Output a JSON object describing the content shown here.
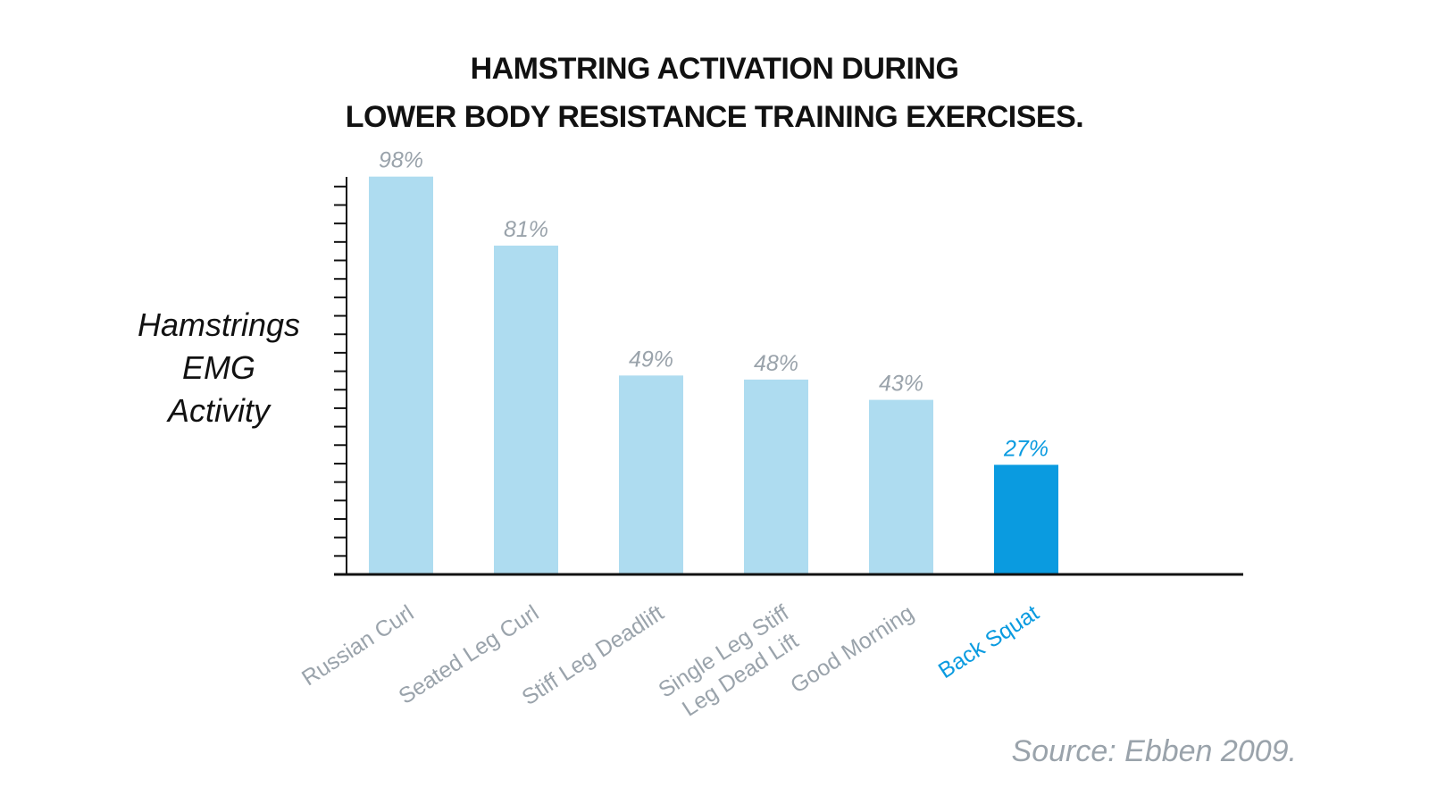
{
  "chart_data": {
    "type": "bar",
    "title": [
      "HAMSTRING ACTIVATION DURING",
      "LOWER BODY RESISTANCE TRAINING EXERCISES."
    ],
    "ylabel": [
      "Hamstrings",
      "EMG",
      "Activity"
    ],
    "xlabel": "",
    "categories": [
      [
        "Russian Curl"
      ],
      [
        "Seated Leg Curl"
      ],
      [
        "Stiff Leg Deadlift"
      ],
      [
        "Single Leg Stiff",
        "Leg Dead Lift"
      ],
      [
        "Good Morning"
      ],
      [
        "Back Squat"
      ]
    ],
    "values": [
      98,
      81,
      49,
      48,
      43,
      27
    ],
    "value_labels": [
      "98%",
      "81%",
      "49%",
      "48%",
      "43%",
      "27%"
    ],
    "ylim": [
      0,
      100
    ],
    "y_tick_step": 4.55,
    "highlight_index": 5,
    "grid": false,
    "colors": {
      "bar": "#aedcf0",
      "highlight": "#0a9be0",
      "label_gray": "#9aa3ab",
      "axis": "#111111"
    },
    "source": "Source: Ebben 2009."
  }
}
